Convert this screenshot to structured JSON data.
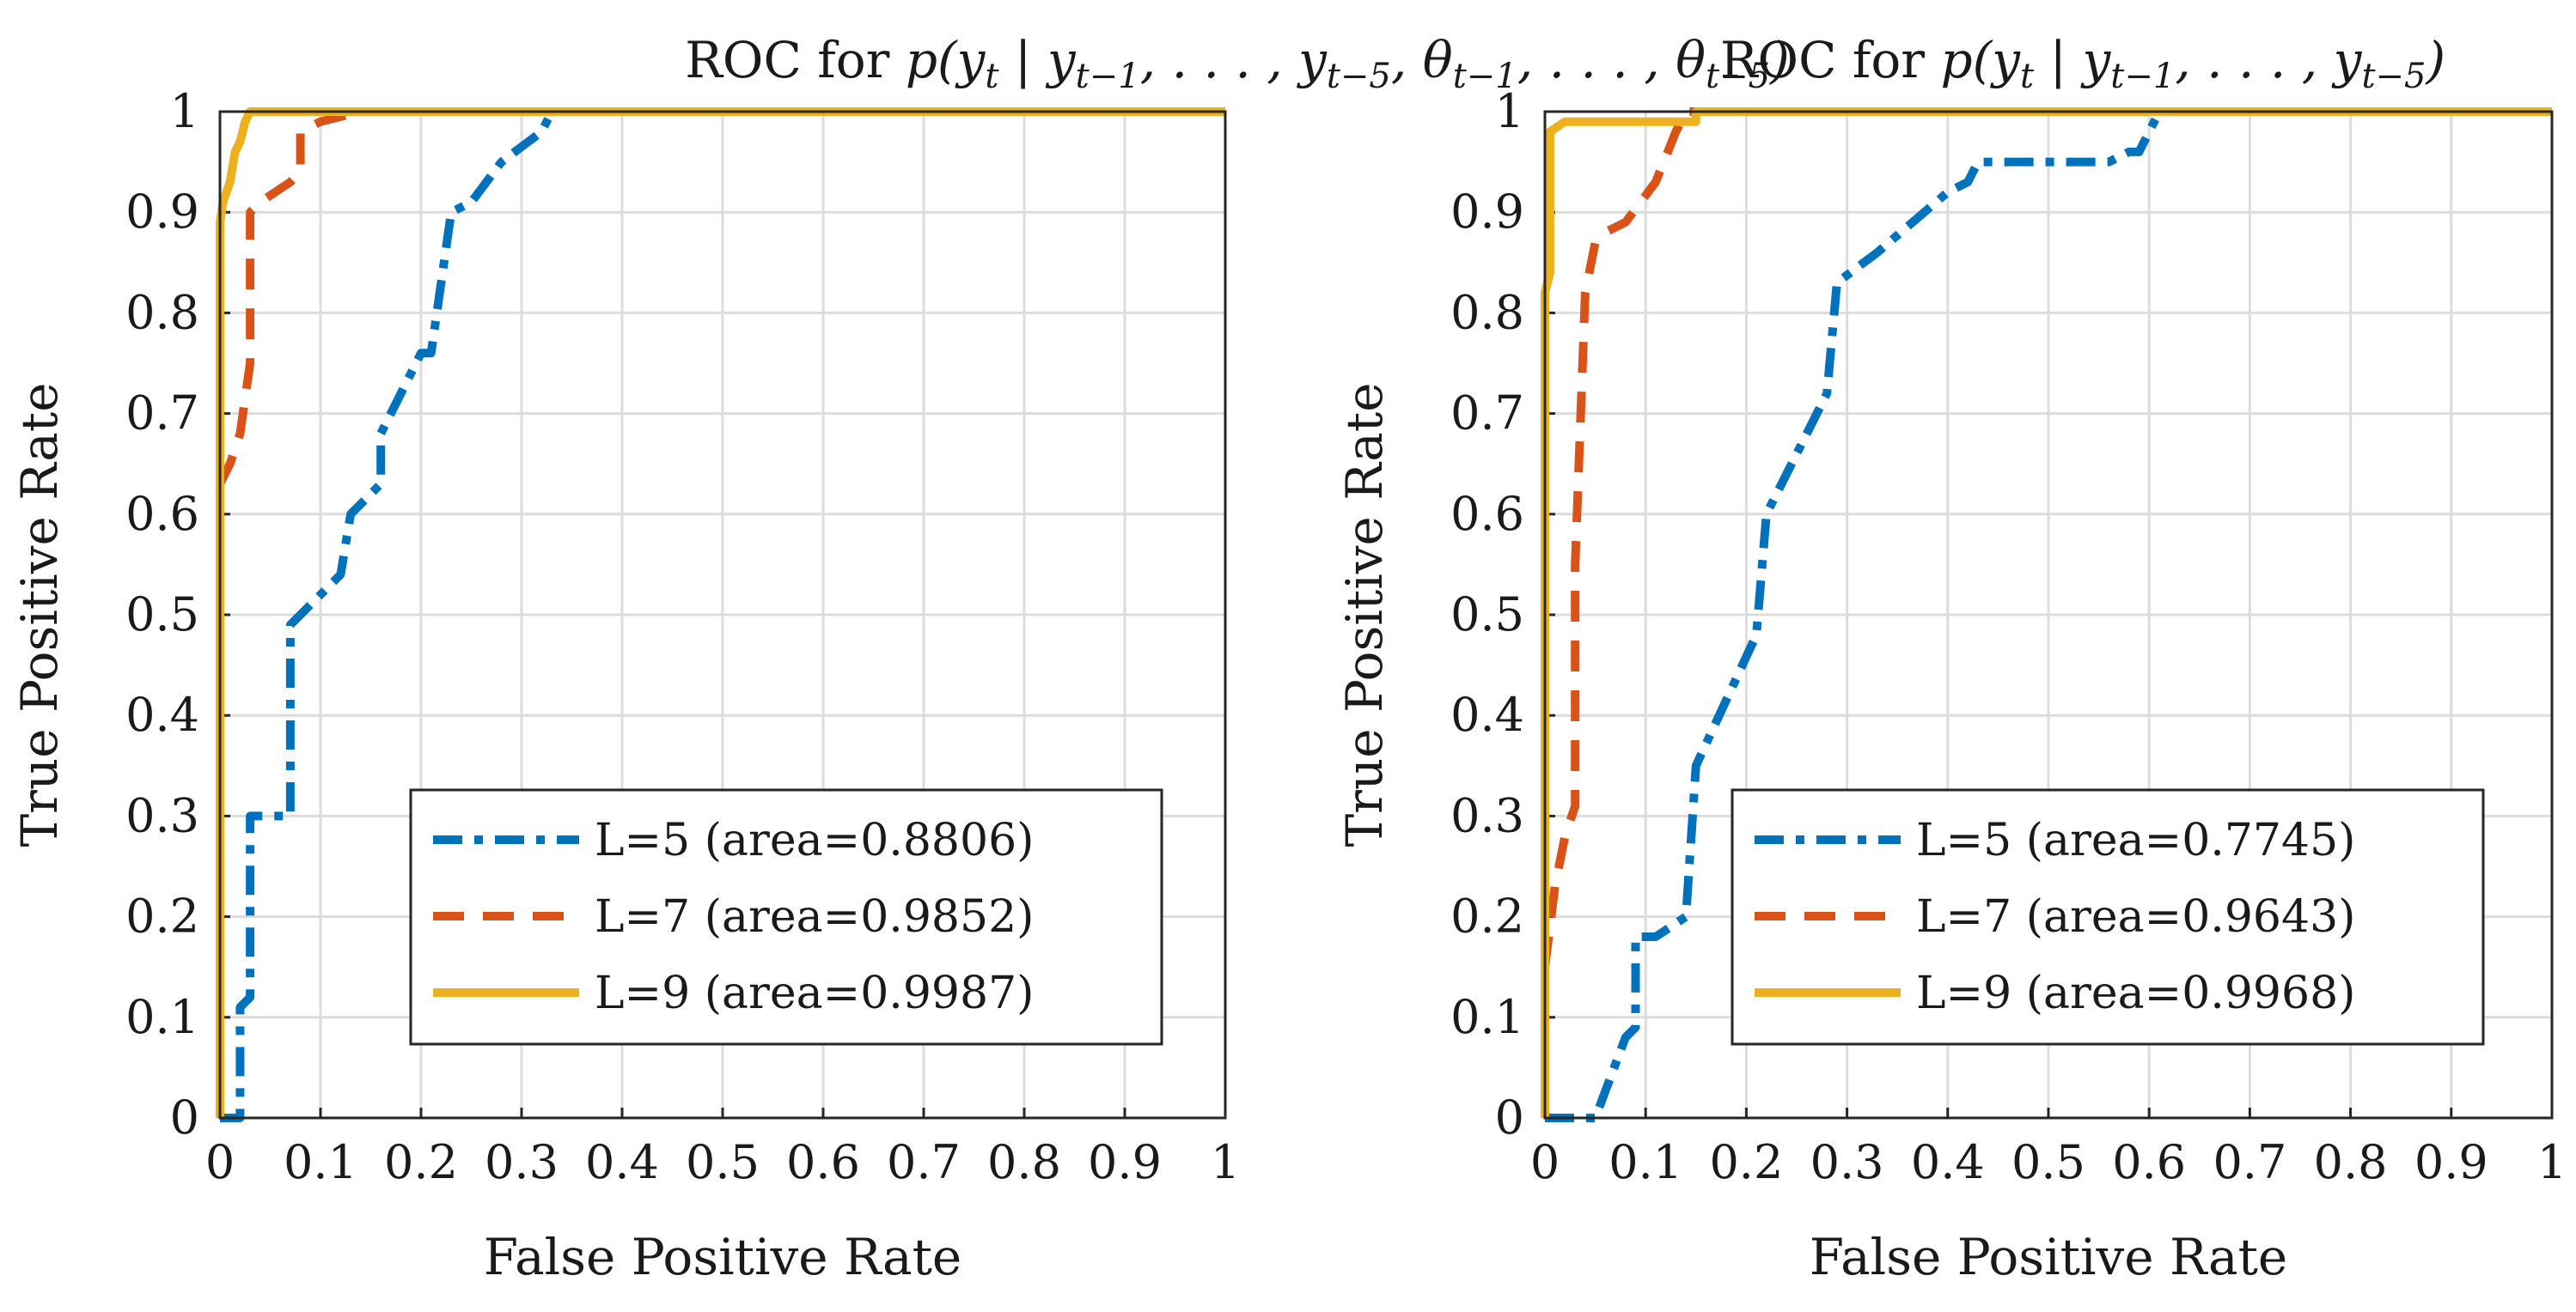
{
  "colors": {
    "L5": "#0072BD",
    "L7": "#D95319",
    "L9": "#EDB120",
    "grid": "#dcdcdc",
    "axis": "#262626"
  },
  "chart_data": [
    {
      "type": "line",
      "title": "ROC for p(y_t | y_{t-1}, ..., y_{t-5}, θ_{t-1}, ..., θ_{t-5})",
      "title_parts": {
        "prefix": "ROC for ",
        "body": "p(y",
        "sub_t": "t",
        "bar": " | y",
        "sub_1": "t−1",
        "dots1": ", . . . , y",
        "sub_5": "t−5",
        "extra": ", θ",
        "sub_th1": "t−1",
        "dots2": ", . . . , θ",
        "sub_th5": "t−5",
        "close": ")"
      },
      "xlabel": "False Positive Rate",
      "ylabel": "True Positive Rate",
      "xlim": [
        0,
        1
      ],
      "ylim": [
        0,
        1
      ],
      "xticks": [
        "0",
        "0.1",
        "0.2",
        "0.3",
        "0.4",
        "0.5",
        "0.6",
        "0.7",
        "0.8",
        "0.9",
        "1"
      ],
      "yticks": [
        "0",
        "0.1",
        "0.2",
        "0.3",
        "0.4",
        "0.5",
        "0.6",
        "0.7",
        "0.8",
        "0.9",
        "1"
      ],
      "grid": true,
      "legend_position": "bottom-right",
      "series": [
        {
          "name": "L=5 (area=0.8806)",
          "style": "dashdot",
          "x": [
            0,
            0.02,
            0.02,
            0.03,
            0.03,
            0.07,
            0.07,
            0.08,
            0.12,
            0.13,
            0.16,
            0.16,
            0.2,
            0.21,
            0.23,
            0.25,
            0.28,
            0.32,
            0.33,
            0.4,
            1
          ],
          "y": [
            0,
            0,
            0.11,
            0.12,
            0.3,
            0.3,
            0.49,
            0.5,
            0.54,
            0.6,
            0.63,
            0.68,
            0.76,
            0.76,
            0.9,
            0.91,
            0.95,
            0.98,
            1,
            1,
            1
          ]
        },
        {
          "name": "L=7 (area=0.9852)",
          "style": "dashed",
          "x": [
            0,
            0.01,
            0.02,
            0.03,
            0.03,
            0.04,
            0.07,
            0.08,
            0.08,
            0.1,
            0.14,
            0.2,
            1
          ],
          "y": [
            0.63,
            0.65,
            0.68,
            0.75,
            0.9,
            0.91,
            0.93,
            0.94,
            0.98,
            0.99,
            1,
            1,
            1
          ]
        },
        {
          "name": "L=9 (area=0.9987)",
          "style": "solid",
          "x": [
            0,
            0,
            0.003,
            0.01,
            0.015,
            0.02,
            0.025,
            0.03,
            1
          ],
          "y": [
            0,
            0.89,
            0.91,
            0.93,
            0.96,
            0.97,
            0.99,
            1,
            1
          ]
        }
      ]
    },
    {
      "type": "line",
      "title": "ROC for p(y_t | y_{t-1}, ..., y_{t-5})",
      "title_parts": {
        "prefix": "ROC for ",
        "body": "p(y",
        "sub_t": "t",
        "bar": " | y",
        "sub_1": "t−1",
        "dots1": ", . . . , y",
        "sub_5": "t−5",
        "close": ")"
      },
      "xlabel": "False Positive Rate",
      "ylabel": "True Positive Rate",
      "xlim": [
        0,
        1
      ],
      "ylim": [
        0,
        1
      ],
      "xticks": [
        "0",
        "0.1",
        "0.2",
        "0.3",
        "0.4",
        "0.5",
        "0.6",
        "0.7",
        "0.8",
        "0.9",
        "1"
      ],
      "yticks": [
        "0",
        "0.1",
        "0.2",
        "0.3",
        "0.4",
        "0.5",
        "0.6",
        "0.7",
        "0.8",
        "0.9",
        "1"
      ],
      "grid": true,
      "legend_position": "bottom-right",
      "series": [
        {
          "name": "L=5 (area=0.7745)",
          "style": "dashdot",
          "x": [
            0,
            0.05,
            0.08,
            0.09,
            0.09,
            0.11,
            0.14,
            0.15,
            0.21,
            0.22,
            0.28,
            0.29,
            0.33,
            0.4,
            0.42,
            0.43,
            0.56,
            0.58,
            0.59,
            0.61,
            0.7,
            1
          ],
          "y": [
            0,
            0,
            0.08,
            0.09,
            0.18,
            0.18,
            0.2,
            0.35,
            0.48,
            0.6,
            0.72,
            0.83,
            0.86,
            0.92,
            0.93,
            0.95,
            0.95,
            0.96,
            0.96,
            1,
            1,
            1
          ]
        },
        {
          "name": "L=7 (area=0.9643)",
          "style": "dashed",
          "x": [
            0,
            0.01,
            0.02,
            0.03,
            0.03,
            0.04,
            0.05,
            0.06,
            0.08,
            0.11,
            0.13,
            0.14,
            0.2,
            1
          ],
          "y": [
            0.15,
            0.23,
            0.28,
            0.31,
            0.55,
            0.82,
            0.87,
            0.88,
            0.89,
            0.93,
            0.98,
            1,
            1,
            1
          ]
        },
        {
          "name": "L=9 (area=0.9968)",
          "style": "solid",
          "x": [
            0,
            0,
            0.005,
            0.005,
            0.02,
            0.02,
            0.15,
            0.15,
            1
          ],
          "y": [
            0,
            0.82,
            0.84,
            0.98,
            0.99,
            0.99,
            0.99,
            1,
            1
          ]
        }
      ]
    }
  ]
}
